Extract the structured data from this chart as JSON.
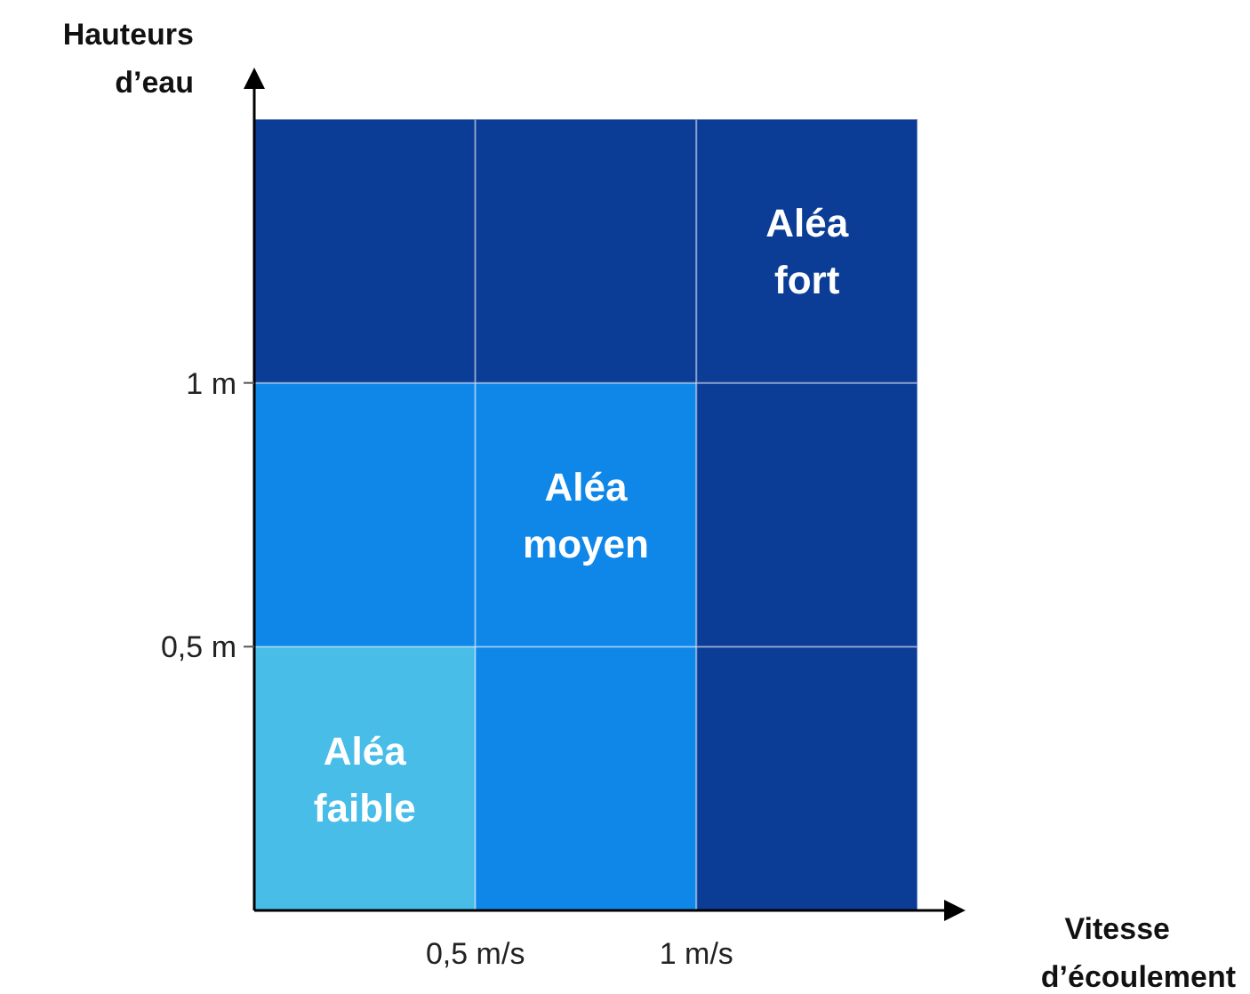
{
  "chart_data": {
    "type": "bar",
    "stacked": true,
    "xlabel": "Vitesse d’écoulement",
    "ylabel": "Hauteurs d’eau",
    "x": [
      0.25,
      0.75,
      1.25
    ],
    "xlim": [
      0,
      1.5
    ],
    "ylim": [
      0,
      1.5
    ],
    "xticks": [
      {
        "value": 0.5,
        "label": "0,5 m/s"
      },
      {
        "value": 1,
        "label": "1 m/s"
      }
    ],
    "yticks": [
      {
        "value": 0.5,
        "label": "0,5 m"
      },
      {
        "value": 1,
        "label": "1 m"
      }
    ],
    "series": [
      {
        "colors": [
          "#47bde8",
          "#0f87e8",
          "#0b3d96"
        ],
        "values": [
          0.5,
          0.5,
          0.5
        ]
      },
      {
        "colors": [
          "#0f87e8",
          "#0f87e8",
          "#0b3d96"
        ],
        "values": [
          0.5,
          0.5,
          0.5
        ]
      },
      {
        "colors": [
          "#0b3d96",
          "#0b3d96",
          "#0b3d96"
        ],
        "values": [
          0.5,
          0.5,
          0.5
        ]
      }
    ],
    "annotations": [
      "Aléa faible",
      "Aléa moyen",
      "Aléa fort"
    ],
    "grid": false
  }
}
